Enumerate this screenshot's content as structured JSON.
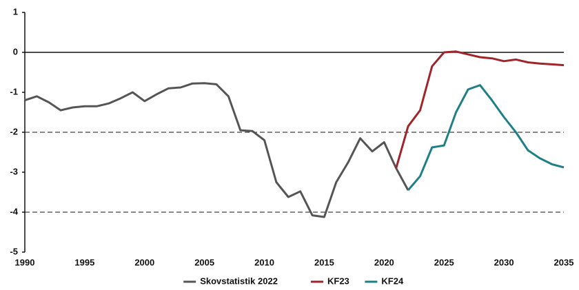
{
  "chart_data": {
    "type": "line",
    "x": [
      1990,
      1991,
      1992,
      1993,
      1994,
      1995,
      1996,
      1997,
      1998,
      1999,
      2000,
      2001,
      2002,
      2003,
      2004,
      2005,
      2006,
      2007,
      2008,
      2009,
      2010,
      2011,
      2012,
      2013,
      2014,
      2015,
      2016,
      2017,
      2018,
      2019,
      2020,
      2021,
      2022,
      2023,
      2024,
      2025,
      2026,
      2027,
      2028,
      2029,
      2030,
      2031,
      2032,
      2033,
      2034,
      2035
    ],
    "series": [
      {
        "name": "Skovstatistik 2022",
        "color": "#555555",
        "values": [
          -1.2,
          -1.1,
          -1.25,
          -1.45,
          -1.38,
          -1.35,
          -1.35,
          -1.28,
          -1.15,
          -1.0,
          -1.22,
          -1.05,
          -0.9,
          -0.88,
          -0.78,
          -0.77,
          -0.8,
          -1.1,
          -1.95,
          -1.97,
          -2.2,
          -3.25,
          -3.62,
          -3.48,
          -4.08,
          -4.12,
          -3.25,
          -2.75,
          -2.15,
          -2.48,
          -2.25,
          -2.9,
          -3.45,
          null,
          null,
          null,
          null,
          null,
          null,
          null,
          null,
          null,
          null,
          null,
          null,
          null
        ]
      },
      {
        "name": "KF23",
        "color": "#a0252b",
        "values": [
          null,
          null,
          null,
          null,
          null,
          null,
          null,
          null,
          null,
          null,
          null,
          null,
          null,
          null,
          null,
          null,
          null,
          null,
          null,
          null,
          null,
          null,
          null,
          null,
          null,
          null,
          null,
          null,
          null,
          null,
          null,
          -2.9,
          -1.85,
          -1.45,
          -0.35,
          0.0,
          0.02,
          -0.05,
          -0.12,
          -0.15,
          -0.22,
          -0.18,
          -0.25,
          -0.28,
          -0.3,
          -0.32
        ]
      },
      {
        "name": "KF24",
        "color": "#1e7f86",
        "values": [
          null,
          null,
          null,
          null,
          null,
          null,
          null,
          null,
          null,
          null,
          null,
          null,
          null,
          null,
          null,
          null,
          null,
          null,
          null,
          null,
          null,
          null,
          null,
          null,
          null,
          null,
          null,
          null,
          null,
          null,
          null,
          null,
          -3.45,
          -3.1,
          -2.38,
          -2.33,
          -1.5,
          -0.93,
          -0.82,
          -1.2,
          -1.62,
          -2.0,
          -2.45,
          -2.65,
          -2.8,
          -2.88
        ]
      }
    ],
    "xlim": [
      1990,
      2035
    ],
    "xticks": [
      1990,
      1995,
      2000,
      2005,
      2010,
      2015,
      2020,
      2025,
      2030,
      2035
    ],
    "ylim": [
      -5,
      1
    ],
    "yticks": [
      -5,
      -4,
      -3,
      -2,
      -1,
      0,
      1
    ],
    "hlines": [
      {
        "value": 0,
        "style": "solid"
      },
      {
        "value": -2,
        "style": "dashed"
      },
      {
        "value": -4,
        "style": "dashed"
      }
    ],
    "legend": "bottom"
  }
}
